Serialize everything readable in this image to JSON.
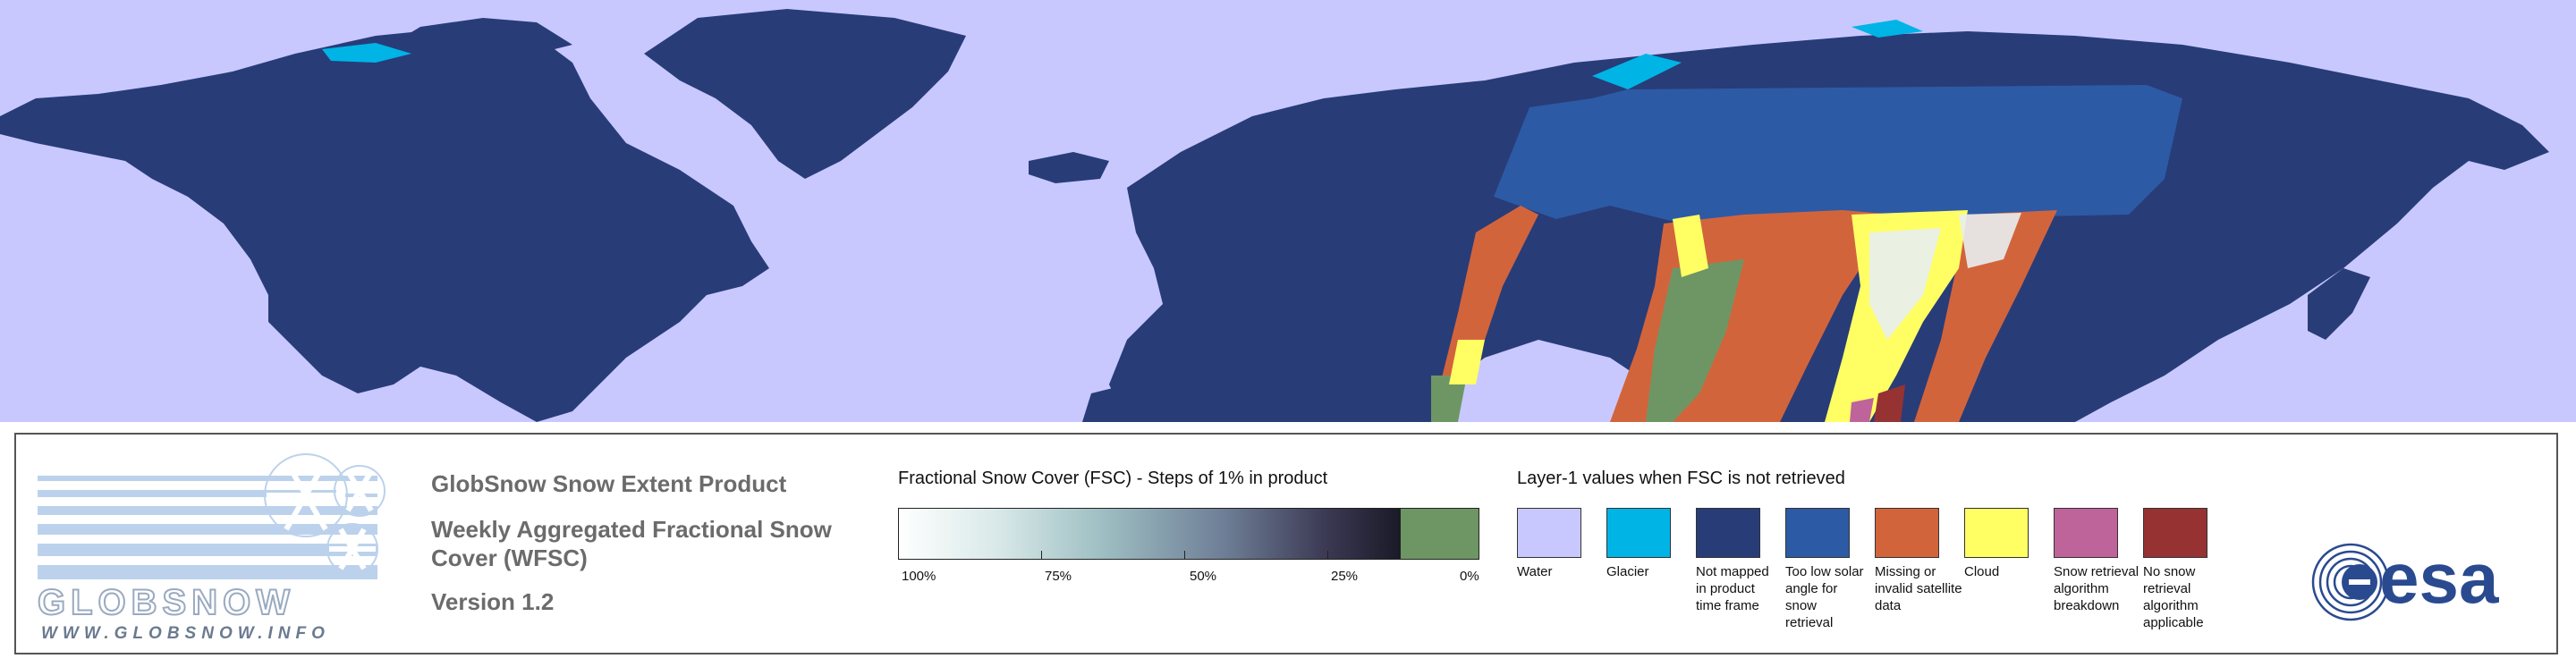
{
  "product": {
    "title": "GlobSnow Snow Extent Product",
    "subtitle": "Weekly Aggregated Fractional Snow Cover (WFSC)",
    "version": "Version 1.2"
  },
  "logo": {
    "wordmark": "GLOBSNOW",
    "url": "WWW.GLOBSNOW.INFO"
  },
  "colorbar": {
    "title": "Fractional Snow Cover (FSC) - Steps of 1% in product",
    "ticks": [
      "100%",
      "75%",
      "50%",
      "25%",
      "0%"
    ]
  },
  "layer1": {
    "title": "Layer-1 values when FSC is not retrieved",
    "items": [
      {
        "label": "Water",
        "color": "#c8c8ff"
      },
      {
        "label": "Glacier",
        "color": "#00b4e6"
      },
      {
        "label": "Not mapped in product time frame",
        "color": "#283c78"
      },
      {
        "label": "Too low solar angle for snow retrieval",
        "color": "#2d5aa5"
      },
      {
        "label": "Missing or invalid satellite data",
        "color": "#d2643c"
      },
      {
        "label": "Cloud",
        "color": "#ffff64"
      },
      {
        "label": "Snow retrieval algorithm breakdown",
        "color": "#be649b"
      },
      {
        "label": "No snow retrieval algorithm applicable",
        "color": "#963232"
      }
    ]
  },
  "colors": {
    "water": "#c8c8ff",
    "land": "#283c78",
    "snow_free": "#6e9664",
    "text_gray": "#6b6b6b"
  },
  "esa_logo": "esa"
}
